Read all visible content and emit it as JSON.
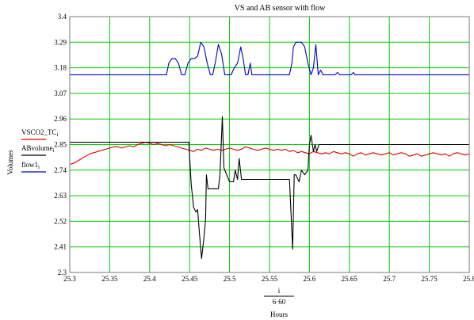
{
  "chart_data": {
    "type": "line",
    "title": "VS and AB sensor with flow",
    "xlabel": "Hours",
    "x_expression": {
      "numerator": "i",
      "denominator": "6·60"
    },
    "ylabel": "Volumes",
    "xlim": [
      25.3,
      25.8
    ],
    "ylim": [
      2.3,
      3.4
    ],
    "x_ticks": [
      "25.3",
      "25.35",
      "25.4",
      "25.45",
      "25.5",
      "25.55",
      "25.6",
      "25.65",
      "25.7",
      "25.75",
      "25.8"
    ],
    "y_ticks": [
      "2.3",
      "2.41",
      "2.52",
      "2.63",
      "2.74",
      "2.85",
      "2.96",
      "3.07",
      "3.18",
      "3.29",
      "3.4"
    ],
    "grid": true,
    "grid_color": "#00cc00",
    "legend_placement": "left",
    "series": [
      {
        "name": "VSCO2_TC",
        "subscript": "i",
        "color": "#e00000",
        "points": [
          [
            25.3,
            2.765
          ],
          [
            25.305,
            2.77
          ],
          [
            25.31,
            2.78
          ],
          [
            25.315,
            2.79
          ],
          [
            25.32,
            2.8
          ],
          [
            25.325,
            2.81
          ],
          [
            25.33,
            2.815
          ],
          [
            25.335,
            2.82
          ],
          [
            25.34,
            2.825
          ],
          [
            25.345,
            2.83
          ],
          [
            25.35,
            2.835
          ],
          [
            25.355,
            2.84
          ],
          [
            25.36,
            2.84
          ],
          [
            25.365,
            2.835
          ],
          [
            25.37,
            2.84
          ],
          [
            25.375,
            2.845
          ],
          [
            25.38,
            2.84
          ],
          [
            25.385,
            2.85
          ],
          [
            25.39,
            2.855
          ],
          [
            25.395,
            2.86
          ],
          [
            25.4,
            2.855
          ],
          [
            25.405,
            2.85
          ],
          [
            25.41,
            2.855
          ],
          [
            25.415,
            2.85
          ],
          [
            25.42,
            2.845
          ],
          [
            25.425,
            2.85
          ],
          [
            25.43,
            2.845
          ],
          [
            25.435,
            2.84
          ],
          [
            25.44,
            2.835
          ],
          [
            25.445,
            2.83
          ],
          [
            25.45,
            2.825
          ],
          [
            25.455,
            2.82
          ],
          [
            25.46,
            2.83
          ],
          [
            25.465,
            2.825
          ],
          [
            25.47,
            2.835
          ],
          [
            25.475,
            2.83
          ],
          [
            25.48,
            2.825
          ],
          [
            25.485,
            2.83
          ],
          [
            25.49,
            2.825
          ],
          [
            25.495,
            2.83
          ],
          [
            25.5,
            2.835
          ],
          [
            25.505,
            2.83
          ],
          [
            25.51,
            2.825
          ],
          [
            25.515,
            2.83
          ],
          [
            25.52,
            2.84
          ],
          [
            25.525,
            2.835
          ],
          [
            25.53,
            2.83
          ],
          [
            25.535,
            2.825
          ],
          [
            25.54,
            2.83
          ],
          [
            25.545,
            2.835
          ],
          [
            25.55,
            2.83
          ],
          [
            25.555,
            2.825
          ],
          [
            25.56,
            2.83
          ],
          [
            25.565,
            2.825
          ],
          [
            25.57,
            2.83
          ],
          [
            25.575,
            2.82
          ],
          [
            25.58,
            2.825
          ],
          [
            25.585,
            2.815
          ],
          [
            25.59,
            2.82
          ],
          [
            25.595,
            2.815
          ],
          [
            25.6,
            2.81
          ],
          [
            25.605,
            2.82
          ],
          [
            25.61,
            2.815
          ],
          [
            25.615,
            2.81
          ],
          [
            25.62,
            2.815
          ],
          [
            25.625,
            2.81
          ],
          [
            25.63,
            2.82
          ],
          [
            25.635,
            2.815
          ],
          [
            25.64,
            2.81
          ],
          [
            25.645,
            2.815
          ],
          [
            25.65,
            2.81
          ],
          [
            25.655,
            2.8
          ],
          [
            25.66,
            2.81
          ],
          [
            25.665,
            2.815
          ],
          [
            25.67,
            2.805
          ],
          [
            25.675,
            2.81
          ],
          [
            25.68,
            2.815
          ],
          [
            25.685,
            2.81
          ],
          [
            25.69,
            2.805
          ],
          [
            25.695,
            2.81
          ],
          [
            25.7,
            2.815
          ],
          [
            25.705,
            2.805
          ],
          [
            25.71,
            2.81
          ],
          [
            25.715,
            2.815
          ],
          [
            25.72,
            2.81
          ],
          [
            25.725,
            2.8
          ],
          [
            25.73,
            2.805
          ],
          [
            25.735,
            2.81
          ],
          [
            25.74,
            2.8
          ],
          [
            25.745,
            2.805
          ],
          [
            25.75,
            2.81
          ],
          [
            25.755,
            2.815
          ],
          [
            25.76,
            2.81
          ],
          [
            25.765,
            2.805
          ],
          [
            25.77,
            2.81
          ],
          [
            25.775,
            2.8
          ],
          [
            25.78,
            2.81
          ],
          [
            25.785,
            2.815
          ],
          [
            25.79,
            2.81
          ],
          [
            25.795,
            2.805
          ],
          [
            25.8,
            2.81
          ]
        ]
      },
      {
        "name": "ABvolume",
        "subscript": "i",
        "color": "#000000",
        "points": [
          [
            25.3,
            2.86
          ],
          [
            25.449,
            2.86
          ],
          [
            25.45,
            2.8
          ],
          [
            25.452,
            2.68
          ],
          [
            25.455,
            2.58
          ],
          [
            25.458,
            2.56
          ],
          [
            25.46,
            2.57
          ],
          [
            25.462,
            2.48
          ],
          [
            25.465,
            2.36
          ],
          [
            25.468,
            2.45
          ],
          [
            25.47,
            2.53
          ],
          [
            25.471,
            2.72
          ],
          [
            25.473,
            2.66
          ],
          [
            25.48,
            2.66
          ],
          [
            25.486,
            2.66
          ],
          [
            25.488,
            2.72
          ],
          [
            25.491,
            2.97
          ],
          [
            25.493,
            2.75
          ],
          [
            25.5,
            2.69
          ],
          [
            25.505,
            2.69
          ],
          [
            25.507,
            2.74
          ],
          [
            25.51,
            2.7
          ],
          [
            25.512,
            2.79
          ],
          [
            25.515,
            2.7
          ],
          [
            25.52,
            2.7
          ],
          [
            25.575,
            2.7
          ],
          [
            25.577,
            2.55
          ],
          [
            25.579,
            2.4
          ],
          [
            25.581,
            2.72
          ],
          [
            25.583,
            2.72
          ],
          [
            25.587,
            2.69
          ],
          [
            25.59,
            2.74
          ],
          [
            25.594,
            2.72
          ],
          [
            25.598,
            2.74
          ],
          [
            25.6,
            2.85
          ],
          [
            25.602,
            2.89
          ],
          [
            25.605,
            2.82
          ],
          [
            25.607,
            2.85
          ],
          [
            25.609,
            2.82
          ],
          [
            25.612,
            2.85
          ],
          [
            25.8,
            2.85
          ]
        ]
      },
      {
        "name": "flow1",
        "subscript": "i",
        "color": "#0000cc",
        "points": [
          [
            25.3,
            3.15
          ],
          [
            25.418,
            3.15
          ],
          [
            25.421,
            3.15
          ],
          [
            25.424,
            3.2
          ],
          [
            25.428,
            3.22
          ],
          [
            25.432,
            3.22
          ],
          [
            25.436,
            3.2
          ],
          [
            25.44,
            3.15
          ],
          [
            25.444,
            3.15
          ],
          [
            25.448,
            3.2
          ],
          [
            25.452,
            3.22
          ],
          [
            25.456,
            3.22
          ],
          [
            25.46,
            3.23
          ],
          [
            25.464,
            3.29
          ],
          [
            25.468,
            3.27
          ],
          [
            25.472,
            3.2
          ],
          [
            25.476,
            3.15
          ],
          [
            25.479,
            3.15
          ],
          [
            25.482,
            3.2
          ],
          [
            25.486,
            3.28
          ],
          [
            25.49,
            3.24
          ],
          [
            25.494,
            3.15
          ],
          [
            25.497,
            3.15
          ],
          [
            25.502,
            3.15
          ],
          [
            25.506,
            3.18
          ],
          [
            25.51,
            3.2
          ],
          [
            25.514,
            3.27
          ],
          [
            25.517,
            3.22
          ],
          [
            25.52,
            3.15
          ],
          [
            25.523,
            3.15
          ],
          [
            25.526,
            3.2
          ],
          [
            25.528,
            3.15
          ],
          [
            25.575,
            3.15
          ],
          [
            25.578,
            3.2
          ],
          [
            25.58,
            3.27
          ],
          [
            25.583,
            3.29
          ],
          [
            25.59,
            3.29
          ],
          [
            25.594,
            3.27
          ],
          [
            25.598,
            3.2
          ],
          [
            25.602,
            3.15
          ],
          [
            25.605,
            3.18
          ],
          [
            25.608,
            3.28
          ],
          [
            25.611,
            3.15
          ],
          [
            25.614,
            3.17
          ],
          [
            25.617,
            3.15
          ],
          [
            25.632,
            3.15
          ],
          [
            25.635,
            3.16
          ],
          [
            25.638,
            3.15
          ],
          [
            25.652,
            3.15
          ],
          [
            25.655,
            3.16
          ],
          [
            25.657,
            3.15
          ],
          [
            25.8,
            3.15
          ]
        ]
      }
    ]
  }
}
